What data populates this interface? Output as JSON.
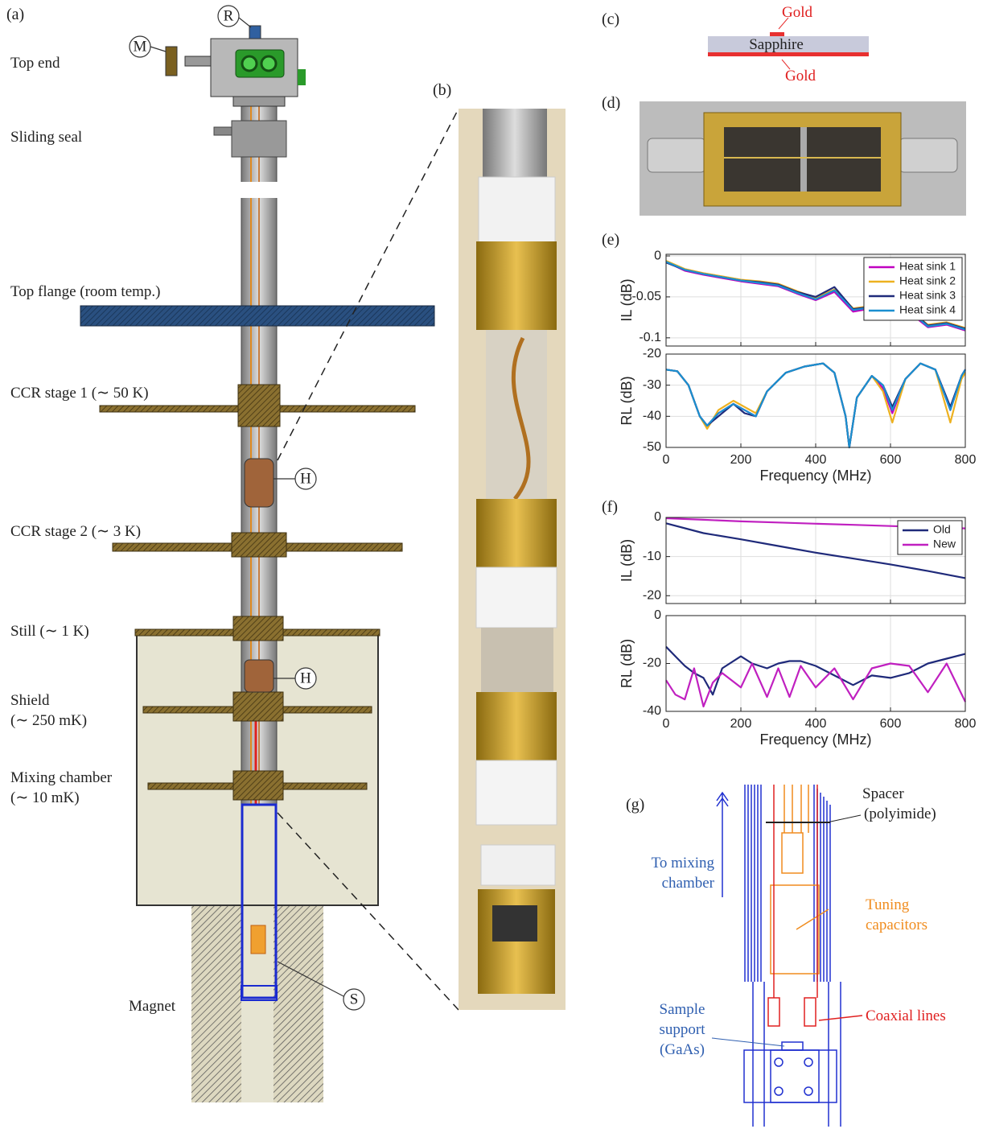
{
  "figure": {
    "panel_labels": [
      "(a)",
      "(b)",
      "(c)",
      "(d)",
      "(e)",
      "(f)",
      "(g)"
    ],
    "panel_a": {
      "top_end": "Top end",
      "sliding_seal": "Sliding seal",
      "top_flange": "Top flange (room temp.)",
      "ccr1": "CCR stage 1 (∼ 50 K)",
      "ccr2": "CCR stage 2 (∼ 3 K)",
      "still": "Still (∼ 1 K)",
      "shield": [
        "Shield",
        "(∼ 250 mK)"
      ],
      "mixing_chamber": [
        "Mixing chamber",
        "(∼ 10 mK)"
      ],
      "magnet": "Magnet",
      "markers": [
        "M",
        "R",
        "H",
        "H",
        "S"
      ]
    },
    "panel_c": {
      "gold_top": "Gold",
      "substrate": "Sapphire",
      "gold_bottom": "Gold"
    },
    "panel_g": {
      "spacer": [
        "Spacer",
        "(polyimide)"
      ],
      "to_mc": [
        "To mixing",
        "chamber"
      ],
      "tuning": [
        "Tuning",
        "capacitors"
      ],
      "sample": [
        "Sample",
        "support",
        "(GaAs)"
      ],
      "coax": "Coaxial lines"
    }
  },
  "chart_data": [
    {
      "type": "line",
      "ylabel": "IL (dB)",
      "x": [
        0,
        50,
        100,
        150,
        200,
        250,
        300,
        350,
        400,
        450,
        500,
        550,
        600,
        650,
        700,
        750,
        800
      ],
      "series": [
        {
          "name": "Heat sink 1",
          "color": "#c000c0",
          "values": [
            -0.007,
            -0.018,
            -0.023,
            -0.027,
            -0.031,
            -0.034,
            -0.037,
            -0.046,
            -0.054,
            -0.044,
            -0.068,
            -0.064,
            -0.077,
            -0.069,
            -0.087,
            -0.084,
            -0.091
          ]
        },
        {
          "name": "Heat sink 2",
          "color": "#edb120",
          "values": [
            -0.006,
            -0.016,
            -0.021,
            -0.025,
            -0.029,
            -0.031,
            -0.034,
            -0.043,
            -0.051,
            -0.041,
            -0.064,
            -0.061,
            -0.073,
            -0.066,
            -0.084,
            -0.081,
            -0.088
          ]
        },
        {
          "name": "Heat sink 3",
          "color": "#1f2a7a",
          "values": [
            -0.008,
            -0.017,
            -0.022,
            -0.026,
            -0.03,
            -0.032,
            -0.035,
            -0.044,
            -0.05,
            -0.038,
            -0.065,
            -0.062,
            -0.074,
            -0.065,
            -0.085,
            -0.082,
            -0.089
          ]
        },
        {
          "name": "Heat sink 4",
          "color": "#1a8fd0",
          "values": [
            -0.007,
            -0.017,
            -0.022,
            -0.026,
            -0.03,
            -0.033,
            -0.036,
            -0.045,
            -0.053,
            -0.042,
            -0.066,
            -0.063,
            -0.075,
            -0.067,
            -0.086,
            -0.083,
            -0.09
          ]
        }
      ],
      "xlim": [
        0,
        800
      ],
      "xticks": [
        0,
        200,
        400,
        600,
        800
      ],
      "xtick_labels": false,
      "ylim": [
        -0.11,
        0.002
      ],
      "yticks": [
        -0.1,
        -0.05,
        0
      ],
      "grid": true,
      "legend": "upper right"
    },
    {
      "type": "line",
      "ylabel": "RL (dB)",
      "xlabel": "Frequency (MHz)",
      "x": [
        0,
        30,
        60,
        90,
        110,
        140,
        180,
        210,
        240,
        270,
        320,
        370,
        420,
        450,
        480,
        490,
        510,
        550,
        580,
        605,
        640,
        680,
        720,
        760,
        790,
        800
      ],
      "series": [
        {
          "name": "Heat sink 1",
          "color": "#c000c0",
          "values": [
            -25,
            -25.5,
            -30,
            -40,
            -43,
            -39,
            -36,
            -38,
            -40,
            -32,
            -26,
            -24,
            -23,
            -26,
            -40,
            -50,
            -34,
            -27,
            -31,
            -39,
            -28,
            -23,
            -25,
            -38,
            -27,
            -25
          ]
        },
        {
          "name": "Heat sink 2",
          "color": "#edb120",
          "values": [
            -25,
            -25.5,
            -30,
            -40,
            -44,
            -38,
            -35,
            -37,
            -39,
            -32,
            -26,
            -24,
            -23,
            -26,
            -40,
            -50,
            -34,
            -27,
            -32,
            -42,
            -28,
            -23,
            -25,
            -42,
            -28,
            -26
          ]
        },
        {
          "name": "Heat sink 3",
          "color": "#1f2a7a",
          "values": [
            -25,
            -25.5,
            -30,
            -40,
            -43,
            -40,
            -36,
            -39,
            -40,
            -32,
            -26,
            -24,
            -23,
            -26,
            -40,
            -50,
            -34,
            -27,
            -30,
            -37,
            -28,
            -23,
            -25,
            -37,
            -27,
            -25
          ]
        },
        {
          "name": "Heat sink 4",
          "color": "#1a8fd0",
          "values": [
            -25,
            -25.5,
            -30,
            -40,
            -43,
            -39,
            -36,
            -38,
            -40,
            -32,
            -26,
            -24,
            -23,
            -26,
            -40,
            -50,
            -34,
            -27,
            -30,
            -38,
            -28,
            -23,
            -25,
            -38,
            -27,
            -25
          ]
        }
      ],
      "xlim": [
        0,
        800
      ],
      "xticks": [
        0,
        200,
        400,
        600,
        800
      ],
      "ylim": [
        -50,
        -20
      ],
      "yticks": [
        -50,
        -40,
        -30,
        -20
      ],
      "grid": true
    },
    {
      "type": "line",
      "ylabel": "IL (dB)",
      "x": [
        0,
        100,
        200,
        300,
        400,
        500,
        600,
        700,
        800
      ],
      "series": [
        {
          "name": "Old",
          "color": "#1f2a7a",
          "values": [
            -1.5,
            -4,
            -5.6,
            -7.3,
            -9,
            -10.5,
            -12,
            -13.7,
            -15.5
          ]
        },
        {
          "name": "New",
          "color": "#c020c0",
          "values": [
            -0.2,
            -0.6,
            -1,
            -1.3,
            -1.6,
            -1.9,
            -2.2,
            -2.5,
            -2.8
          ]
        }
      ],
      "xlim": [
        0,
        800
      ],
      "xticks": [
        0,
        200,
        400,
        600,
        800
      ],
      "xtick_labels": false,
      "ylim": [
        -22,
        0
      ],
      "yticks": [
        -20,
        -10,
        0
      ],
      "grid": true,
      "legend": "upper right"
    },
    {
      "type": "line",
      "ylabel": "RL (dB)",
      "xlabel": "Frequency (MHz)",
      "x": [
        0,
        25,
        50,
        75,
        100,
        125,
        150,
        200,
        230,
        270,
        300,
        330,
        360,
        400,
        450,
        500,
        550,
        600,
        650,
        700,
        750,
        800
      ],
      "series": [
        {
          "name": "Old",
          "color": "#1f2a7a",
          "values": [
            -13,
            -17,
            -21,
            -24,
            -26,
            -33,
            -22,
            -17,
            -20,
            -22,
            -20,
            -19,
            -19,
            -21,
            -25,
            -29,
            -25,
            -26,
            -24,
            -20,
            -18,
            -16
          ]
        },
        {
          "name": "New",
          "color": "#c020c0",
          "values": [
            -27,
            -33,
            -35,
            -22,
            -38,
            -28,
            -24,
            -30,
            -20,
            -34,
            -22,
            -34,
            -21,
            -30,
            -22,
            -35,
            -22,
            -20,
            -21,
            -32,
            -20,
            -36
          ]
        }
      ],
      "xlim": [
        0,
        800
      ],
      "xticks": [
        0,
        200,
        400,
        600,
        800
      ],
      "ylim": [
        -40,
        0
      ],
      "yticks": [
        -40,
        -20,
        0
      ],
      "grid": true
    }
  ]
}
